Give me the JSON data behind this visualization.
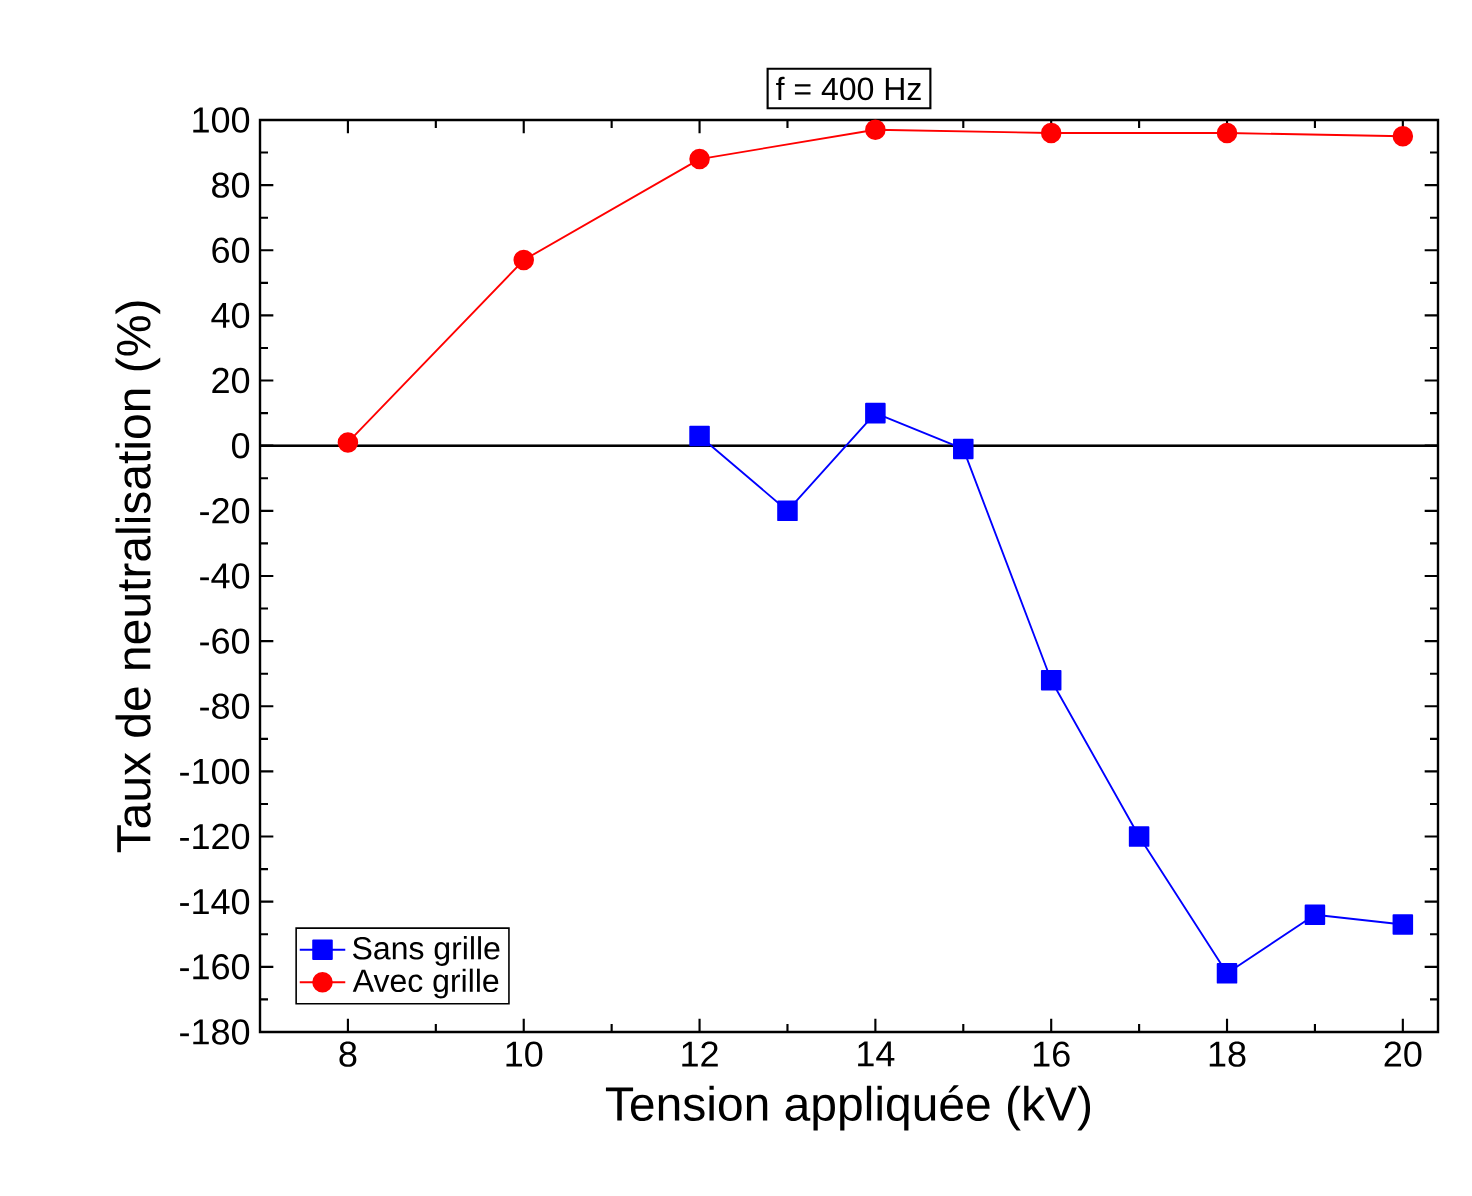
{
  "chart_data": {
    "type": "line",
    "title": "f = 400 Hz",
    "xlabel": "Tension appliquée (kV)",
    "ylabel": "Taux de neutralisation (%)",
    "xlim": [
      7,
      20.4
    ],
    "ylim": [
      -180,
      100
    ],
    "xticks": [
      8,
      10,
      12,
      14,
      16,
      18,
      20
    ],
    "yticks": [
      -180,
      -160,
      -140,
      -120,
      -100,
      -80,
      -60,
      -40,
      -20,
      0,
      20,
      40,
      60,
      80,
      100
    ],
    "series": [
      {
        "name": "Sans grille",
        "color": "#0000ff",
        "marker": "square",
        "x": [
          12,
          13,
          14,
          15,
          16,
          17,
          18,
          19,
          20
        ],
        "values": [
          3,
          -20,
          10,
          -1,
          -72,
          -120,
          -162,
          -144,
          -147
        ]
      },
      {
        "name": "Avec grille",
        "color": "#ff0000",
        "marker": "circle",
        "x": [
          8,
          10,
          12,
          14,
          16,
          18,
          20
        ],
        "values": [
          1,
          57,
          88,
          97,
          96,
          96,
          95
        ]
      }
    ],
    "ref_lines": [
      {
        "axis": "y",
        "value": 0,
        "color": "#000000"
      }
    ],
    "legend": "bottom left"
  }
}
